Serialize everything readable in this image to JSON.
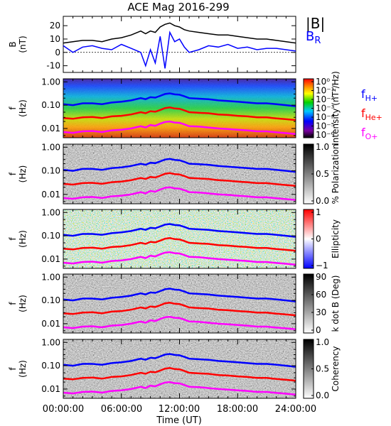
{
  "chart_data": {
    "title": "ACE Mag 2016-299",
    "type": "line",
    "x_axis": {
      "label": "Time (UT)",
      "ticks": [
        "00:00:00",
        "06:00:00",
        "12:00:00",
        "18:00:00",
        "24:00:00"
      ],
      "range_hours": [
        0,
        24
      ]
    },
    "panels": [
      {
        "id": "B",
        "kind": "line",
        "ylabel": [
          "B",
          "(nT)"
        ],
        "ylim": [
          -15,
          27
        ],
        "yticks": [
          "-10",
          "0",
          "10",
          "20"
        ],
        "legend": [
          {
            "text": "|B|",
            "color": "#000000"
          },
          {
            "text": "B",
            "sub": "R",
            "color": "#0000ff"
          }
        ],
        "series": [
          {
            "name": "|B|",
            "color": "#000000",
            "x": [
              0,
              1,
              2,
              3,
              4,
              5,
              6,
              7,
              8,
              8.5,
              9,
              9.5,
              10,
              10.5,
              11,
              11.5,
              12,
              12.5,
              13,
              14,
              15,
              16,
              17,
              18,
              19,
              20,
              21,
              22,
              23,
              24
            ],
            "y": [
              7,
              8,
              9,
              9,
              8,
              10,
              11,
              13,
              16,
              14,
              16,
              15,
              19,
              21,
              22,
              20,
              19,
              17,
              16,
              15,
              14,
              13,
              13,
              12,
              11,
              10,
              10,
              9,
              8,
              7
            ]
          },
          {
            "name": "B_R",
            "color": "#0000ff",
            "x": [
              0,
              1,
              2,
              3,
              4,
              5,
              6,
              7,
              8,
              8.5,
              9,
              9.5,
              10,
              10.5,
              11,
              11.5,
              12,
              12.5,
              13,
              14,
              15,
              16,
              17,
              18,
              19,
              20,
              21,
              22,
              23,
              24
            ],
            "y": [
              5,
              0,
              4,
              5,
              3,
              2,
              6,
              3,
              0,
              -10,
              2,
              -8,
              12,
              -12,
              15,
              8,
              10,
              4,
              0,
              2,
              5,
              4,
              6,
              3,
              4,
              2,
              3,
              3,
              2,
              1
            ]
          }
        ]
      },
      {
        "id": "intensity",
        "kind": "spectrogram",
        "ylabel": [
          "f",
          "(Hz)"
        ],
        "yticks": [
          "1.00",
          "0.10",
          "0.01"
        ],
        "colorbar": {
          "type": "rainbow",
          "labels": [
            "10⁰",
            "10⁻¹",
            "10⁻²",
            "10⁻³",
            "10⁻⁴",
            "10⁻⁵",
            "10⁻⁶"
          ],
          "title": "Intensity (nT²/Hz)"
        },
        "legend": [
          {
            "text": "f",
            "sub": "H+",
            "color": "#0000ff"
          },
          {
            "text": "f",
            "sub": "He+",
            "color": "#ff0000"
          },
          {
            "text": "f",
            "sub": "O+",
            "color": "#ff00ff"
          }
        ]
      },
      {
        "id": "polarization",
        "kind": "spectrogram",
        "ylabel": [
          "f",
          "(Hz)"
        ],
        "yticks": [
          "1.00",
          "0.10",
          "0.01"
        ],
        "colorbar": {
          "type": "gray",
          "labels": [
            "1.0",
            "0.5",
            "0.0"
          ],
          "title": "% Polarization"
        }
      },
      {
        "id": "ellipticity",
        "kind": "spectrogram",
        "ylabel": [
          "f",
          "(Hz)"
        ],
        "yticks": [
          "1.00",
          "0.10",
          "0.01"
        ],
        "colorbar": {
          "type": "bwr",
          "labels": [
            "1",
            "0",
            "−1"
          ],
          "title": "Ellipticity"
        }
      },
      {
        "id": "kdotb",
        "kind": "spectrogram",
        "ylabel": [
          "f",
          "(Hz)"
        ],
        "yticks": [
          "1.00",
          "0.10",
          "0.01"
        ],
        "colorbar": {
          "type": "gray",
          "labels": [
            "90",
            "60",
            "30",
            "0"
          ],
          "title": "k dot B (Deg)"
        }
      },
      {
        "id": "coherency",
        "kind": "spectrogram",
        "ylabel": [
          "f",
          "(Hz)"
        ],
        "yticks": [
          "1.00",
          "0.10",
          "0.01"
        ],
        "colorbar": {
          "type": "gray",
          "labels": [
            "1.0",
            "0.5",
            "0.0"
          ],
          "title": "Coherency"
        }
      }
    ],
    "gyrofrequency_lines": {
      "x": [
        0,
        1,
        2,
        3,
        4,
        5,
        6,
        7,
        8,
        8.5,
        9,
        9.5,
        10,
        10.5,
        11,
        11.5,
        12,
        12.5,
        13,
        14,
        15,
        16,
        17,
        18,
        19,
        20,
        21,
        22,
        23,
        24
      ],
      "H+_Hz": [
        0.11,
        0.1,
        0.12,
        0.12,
        0.11,
        0.13,
        0.14,
        0.16,
        0.2,
        0.18,
        0.22,
        0.21,
        0.25,
        0.3,
        0.32,
        0.29,
        0.28,
        0.24,
        0.2,
        0.19,
        0.18,
        0.16,
        0.15,
        0.14,
        0.13,
        0.12,
        0.12,
        0.11,
        0.1,
        0.09
      ],
      "He+_Hz": [
        0.028,
        0.026,
        0.03,
        0.031,
        0.028,
        0.033,
        0.035,
        0.04,
        0.05,
        0.045,
        0.055,
        0.052,
        0.062,
        0.075,
        0.08,
        0.072,
        0.07,
        0.06,
        0.05,
        0.047,
        0.045,
        0.04,
        0.038,
        0.035,
        0.033,
        0.03,
        0.03,
        0.027,
        0.025,
        0.023
      ],
      "O+_Hz": [
        0.007,
        0.0065,
        0.0075,
        0.0078,
        0.007,
        0.0083,
        0.0088,
        0.01,
        0.0125,
        0.011,
        0.014,
        0.013,
        0.016,
        0.019,
        0.02,
        0.018,
        0.0175,
        0.015,
        0.0125,
        0.012,
        0.011,
        0.01,
        0.0095,
        0.0088,
        0.0083,
        0.0075,
        0.0075,
        0.0068,
        0.0063,
        0.0058
      ]
    }
  }
}
